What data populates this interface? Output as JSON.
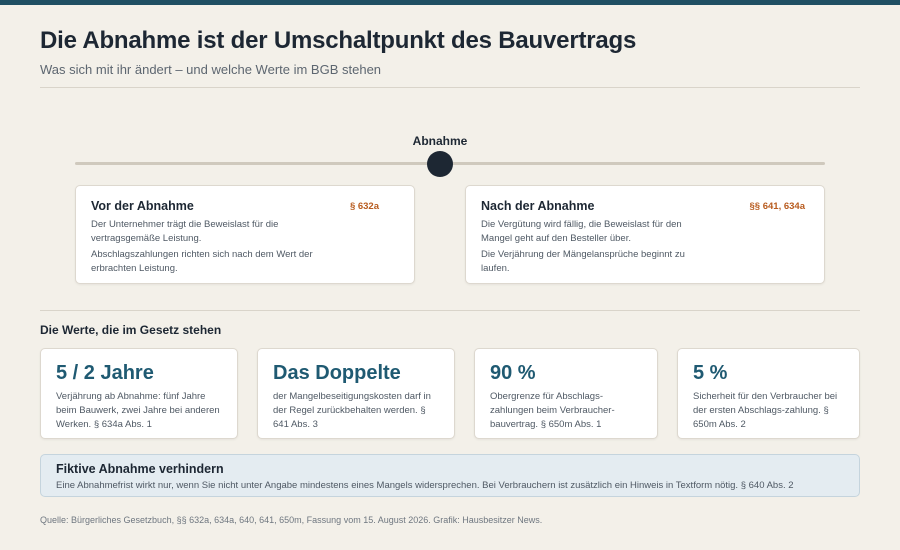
{
  "header": {
    "title": "Die Abnahme ist der Umschaltpunkt des Bauvertrags",
    "subtitle": "Was sich mit ihr ändert – und welche Werte im BGB stehen"
  },
  "timeline": {
    "label": "Abnahme",
    "before": {
      "title": "Vor der Abnahme",
      "paragraph": "§ 632a",
      "text_1": "Der Unternehmer trägt die Beweislast für die vertragsgemäße Leistung.",
      "text_2": "Abschlagszahlungen richten sich nach dem Wert der erbrachten Leistung."
    },
    "after": {
      "title": "Nach der Abnahme",
      "paragraph": "§§ 641, 634a",
      "text_1": "Die Vergütung wird fällig, die Beweislast für den Mangel geht auf den Besteller über.",
      "text_2": "Die Verjährung der Mängelansprüche beginnt zu laufen."
    }
  },
  "values": {
    "section_title": "Die Werte, die im Gesetz stehen",
    "items": [
      {
        "value": "5 / 2 Jahre",
        "text": "Verjährung ab Abnahme: fünf Jahre beim Bauwerk, zwei Jahre bei anderen Werken. § 634a Abs. 1"
      },
      {
        "value": "Das Doppelte",
        "text": "der Mangelbeseitigungskosten darf in der Regel zurückbehalten werden. § 641 Abs. 3"
      },
      {
        "value": "90 %",
        "text": "Obergrenze für Abschlags-zahlungen beim Verbraucher-bauvertrag. § 650m Abs. 1"
      },
      {
        "value": "5 %",
        "text": "Sicherheit für den Verbraucher bei der ersten Abschlags-zahlung. § 650m Abs. 2"
      }
    ]
  },
  "callout": {
    "title": "Fiktive Abnahme verhindern",
    "text": "Eine Abnahmefrist wirkt nur, wenn Sie nicht unter Angabe mindestens eines Mangels widersprechen. Bei Verbrauchern ist zusätzlich ein Hinweis in Textform nötig. § 640 Abs. 2"
  },
  "source": "Quelle: Bürgerliches Gesetzbuch, §§ 632a, 634a, 640, 641, 650m, Fassung vom 15. August 2026. Grafik: Hausbesitzer News."
}
